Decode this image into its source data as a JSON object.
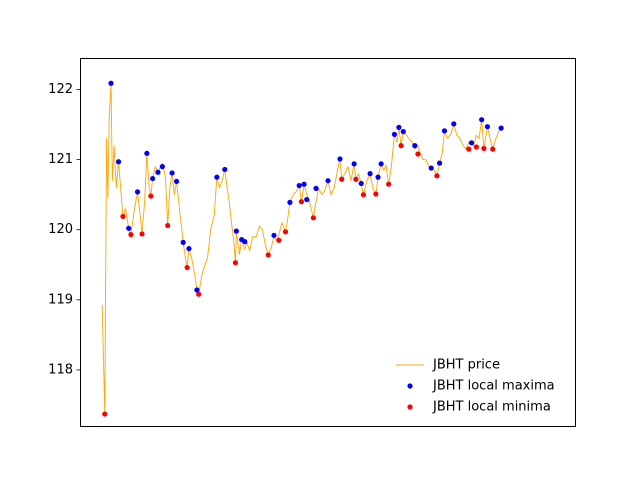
{
  "chart_data": {
    "type": "line",
    "title": "",
    "xlabel": "",
    "ylabel": "",
    "x_ticks_visible": false,
    "ylim": [
      117.2,
      122.45
    ],
    "xlim": [
      -5,
      107
    ],
    "y_ticks": [
      "118",
      "119",
      "120",
      "121",
      "122"
    ],
    "legend_position": "lower right",
    "series": [
      {
        "name": "JBHT price",
        "kind": "line",
        "color": "#ffa500",
        "points": [
          [
            0,
            118.93
          ],
          [
            0.6,
            117.37
          ],
          [
            1,
            121.3
          ],
          [
            1.3,
            120.45
          ],
          [
            1.6,
            121.6
          ],
          [
            2,
            122.09
          ],
          [
            2.3,
            120.7
          ],
          [
            2.7,
            121.2
          ],
          [
            3.2,
            120.6
          ],
          [
            3.7,
            120.97
          ],
          [
            4.3,
            120.5
          ],
          [
            4.7,
            120.19
          ],
          [
            5.3,
            120.3
          ],
          [
            6,
            120.02
          ],
          [
            6.5,
            119.93
          ],
          [
            7.3,
            120.3
          ],
          [
            8,
            120.54
          ],
          [
            8.6,
            120.2
          ],
          [
            9,
            119.94
          ],
          [
            9.6,
            120.4
          ],
          [
            10.1,
            121.09
          ],
          [
            10.6,
            120.6
          ],
          [
            11,
            120.48
          ],
          [
            11.4,
            120.73
          ],
          [
            12,
            120.9
          ],
          [
            12.6,
            120.82
          ],
          [
            13.2,
            120.9
          ],
          [
            13.6,
            120.95
          ],
          [
            14.3,
            120.75
          ],
          [
            14.8,
            120.06
          ],
          [
            15.3,
            120.6
          ],
          [
            15.8,
            120.81
          ],
          [
            16.3,
            120.5
          ],
          [
            16.8,
            120.69
          ],
          [
            17.3,
            120.4
          ],
          [
            17.8,
            120.1
          ],
          [
            18.3,
            119.82
          ],
          [
            18.8,
            119.6
          ],
          [
            19.2,
            119.46
          ],
          [
            19.6,
            119.73
          ],
          [
            20.2,
            119.6
          ],
          [
            20.8,
            119.4
          ],
          [
            21.4,
            119.14
          ],
          [
            21.8,
            119.08
          ],
          [
            22.5,
            119.35
          ],
          [
            23.2,
            119.5
          ],
          [
            23.8,
            119.6
          ],
          [
            24.5,
            120.0
          ],
          [
            25.3,
            120.2
          ],
          [
            25.9,
            120.75
          ],
          [
            26.5,
            120.6
          ],
          [
            27.1,
            120.7
          ],
          [
            27.7,
            120.86
          ],
          [
            28.2,
            120.6
          ],
          [
            28.7,
            120.4
          ],
          [
            29.2,
            120.1
          ],
          [
            29.7,
            119.85
          ],
          [
            30.1,
            119.53
          ],
          [
            30.3,
            119.98
          ],
          [
            31,
            119.65
          ],
          [
            31.5,
            119.86
          ],
          [
            32.2,
            119.72
          ],
          [
            32.7,
            119.82
          ],
          [
            33.3,
            119.7
          ],
          [
            34,
            119.9
          ],
          [
            34.8,
            119.9
          ],
          [
            35.5,
            120.05
          ],
          [
            36.2,
            120.0
          ],
          [
            36.8,
            119.8
          ],
          [
            37.5,
            119.64
          ],
          [
            38.2,
            119.75
          ],
          [
            38.8,
            119.9
          ],
          [
            39.4,
            119.85
          ],
          [
            39.9,
            119.93
          ],
          [
            40.6,
            120.1
          ],
          [
            41.4,
            119.97
          ],
          [
            42,
            120.2
          ],
          [
            42.4,
            120.39
          ],
          [
            43.1,
            120.5
          ],
          [
            43.9,
            120.55
          ],
          [
            44.5,
            120.63
          ],
          [
            45,
            120.4
          ],
          [
            45.6,
            120.65
          ],
          [
            46.2,
            120.5
          ],
          [
            46.7,
            120.43
          ],
          [
            47.2,
            120.3
          ],
          [
            47.7,
            120.17
          ],
          [
            48.3,
            120.4
          ],
          [
            48.9,
            120.59
          ],
          [
            49.6,
            120.5
          ],
          [
            50.2,
            120.55
          ],
          [
            51,
            120.7
          ],
          [
            51.7,
            120.5
          ],
          [
            52.4,
            120.6
          ],
          [
            53,
            120.8
          ],
          [
            53.7,
            121.01
          ],
          [
            54.1,
            120.72
          ],
          [
            54.8,
            120.8
          ],
          [
            55.5,
            120.9
          ],
          [
            56.2,
            120.7
          ],
          [
            56.9,
            120.95
          ],
          [
            57.3,
            120.72
          ],
          [
            57.9,
            120.8
          ],
          [
            58.5,
            120.65
          ],
          [
            59,
            120.5
          ],
          [
            59.8,
            120.7
          ],
          [
            60.5,
            120.8
          ],
          [
            61.1,
            120.6
          ],
          [
            61.8,
            120.5
          ],
          [
            62.3,
            120.75
          ],
          [
            63,
            120.94
          ],
          [
            63.6,
            120.85
          ],
          [
            64.1,
            120.92
          ],
          [
            64.7,
            120.65
          ],
          [
            65.3,
            120.9
          ],
          [
            66,
            121.36
          ],
          [
            66.6,
            121.25
          ],
          [
            67,
            121.46
          ],
          [
            67.5,
            121.2
          ],
          [
            68,
            121.4
          ],
          [
            68.7,
            121.35
          ],
          [
            69.3,
            121.3
          ],
          [
            70,
            121.25
          ],
          [
            70.6,
            121.15
          ],
          [
            71.3,
            121.2
          ],
          [
            71.8,
            121.1
          ],
          [
            72.5,
            121.0
          ],
          [
            73.1,
            121.0
          ],
          [
            73.8,
            120.9
          ],
          [
            74.3,
            120.88
          ],
          [
            75,
            120.85
          ],
          [
            75.6,
            120.77
          ],
          [
            76.2,
            120.95
          ],
          [
            76.8,
            121.1
          ],
          [
            77.3,
            121.4
          ],
          [
            78,
            121.3
          ],
          [
            78.8,
            121.37
          ],
          [
            79.4,
            121.51
          ],
          [
            80.1,
            121.35
          ],
          [
            80.8,
            121.3
          ],
          [
            81.5,
            121.2
          ],
          [
            82.1,
            121.15
          ],
          [
            82.8,
            121.25
          ],
          [
            83.4,
            121.22
          ],
          [
            83.9,
            121.2
          ],
          [
            84.5,
            121.35
          ],
          [
            85.1,
            121.3
          ],
          [
            85.7,
            121.57
          ],
          [
            86.2,
            121.16
          ],
          [
            87,
            121.47
          ],
          [
            87.6,
            121.3
          ],
          [
            88.2,
            121.15
          ],
          [
            88.9,
            121.3
          ],
          [
            89.5,
            121.4
          ],
          [
            90.1,
            121.45
          ]
        ]
      },
      {
        "name": "JBHT local maxima",
        "kind": "scatter",
        "color": "#0000ff",
        "points": [
          [
            2,
            122.09
          ],
          [
            3.7,
            120.97
          ],
          [
            6,
            120.02
          ],
          [
            8,
            120.54
          ],
          [
            10.1,
            121.09
          ],
          [
            11.4,
            120.73
          ],
          [
            12.6,
            120.82
          ],
          [
            13.6,
            120.9
          ],
          [
            15.8,
            120.81
          ],
          [
            16.8,
            120.69
          ],
          [
            18.3,
            119.82
          ],
          [
            19.6,
            119.73
          ],
          [
            21.4,
            119.14
          ],
          [
            25.9,
            120.75
          ],
          [
            27.7,
            120.86
          ],
          [
            30.3,
            119.98
          ],
          [
            31.5,
            119.86
          ],
          [
            32.2,
            119.83
          ],
          [
            38.8,
            119.92
          ],
          [
            42.4,
            120.39
          ],
          [
            44.5,
            120.63
          ],
          [
            45.6,
            120.65
          ],
          [
            46.2,
            120.43
          ],
          [
            48.3,
            120.59
          ],
          [
            51,
            120.7
          ],
          [
            53.7,
            121.01
          ],
          [
            56.9,
            120.94
          ],
          [
            58.5,
            120.66
          ],
          [
            60.5,
            120.8
          ],
          [
            62.3,
            120.75
          ],
          [
            63,
            120.94
          ],
          [
            66,
            121.36
          ],
          [
            67,
            121.46
          ],
          [
            68,
            121.4
          ],
          [
            70.6,
            121.2
          ],
          [
            74.3,
            120.88
          ],
          [
            76.2,
            120.95
          ],
          [
            77.3,
            121.41
          ],
          [
            79.4,
            121.51
          ],
          [
            83.4,
            121.24
          ],
          [
            85.7,
            121.57
          ],
          [
            87,
            121.47
          ],
          [
            90.1,
            121.45
          ]
        ]
      },
      {
        "name": "JBHT local minima",
        "kind": "scatter",
        "color": "#ff0000",
        "points": [
          [
            0.6,
            117.37
          ],
          [
            4.7,
            120.19
          ],
          [
            6.5,
            119.93
          ],
          [
            9,
            119.94
          ],
          [
            11,
            120.48
          ],
          [
            14.8,
            120.06
          ],
          [
            19.2,
            119.46
          ],
          [
            21.8,
            119.08
          ],
          [
            30.1,
            119.53
          ],
          [
            37.5,
            119.64
          ],
          [
            39.9,
            119.85
          ],
          [
            41.4,
            119.97
          ],
          [
            45,
            120.4
          ],
          [
            47.7,
            120.17
          ],
          [
            54.1,
            120.72
          ],
          [
            57.3,
            120.72
          ],
          [
            59,
            120.5
          ],
          [
            61.8,
            120.51
          ],
          [
            64.7,
            120.65
          ],
          [
            67.5,
            121.2
          ],
          [
            71.3,
            121.08
          ],
          [
            75.6,
            120.77
          ],
          [
            82.8,
            121.15
          ],
          [
            84.5,
            121.18
          ],
          [
            86.2,
            121.16
          ],
          [
            88.2,
            121.15
          ]
        ]
      }
    ]
  }
}
